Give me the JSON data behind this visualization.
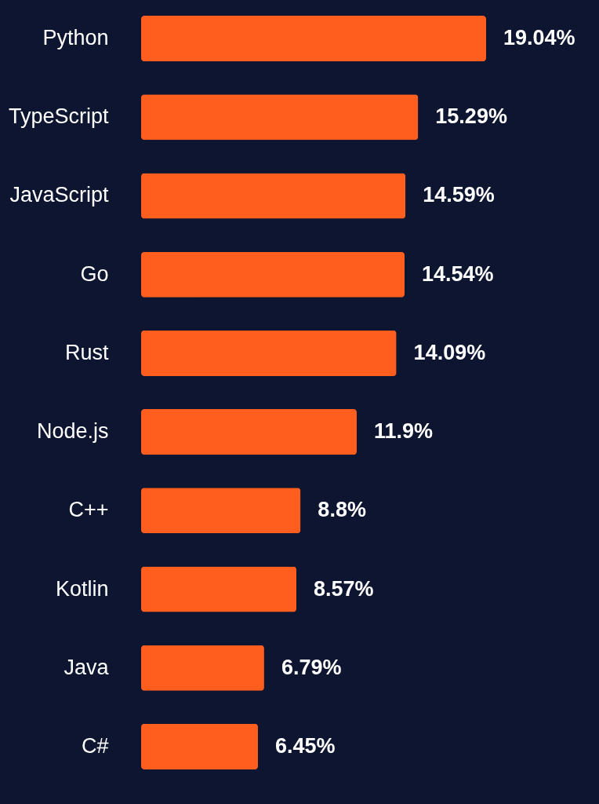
{
  "chart_data": {
    "type": "bar",
    "orientation": "horizontal",
    "categories": [
      "Python",
      "TypeScript",
      "JavaScript",
      "Go",
      "Rust",
      "Node.js",
      "C++",
      "Kotlin",
      "Java",
      "C#"
    ],
    "values": [
      19.04,
      15.29,
      14.59,
      14.54,
      14.09,
      11.9,
      8.8,
      8.57,
      6.79,
      6.45
    ],
    "value_labels": [
      "19.04%",
      "15.29%",
      "14.59%",
      "14.54%",
      "14.09%",
      "11.9%",
      "8.8%",
      "8.57%",
      "6.79%",
      "6.45%"
    ],
    "color": "#ff5e1f"
  }
}
